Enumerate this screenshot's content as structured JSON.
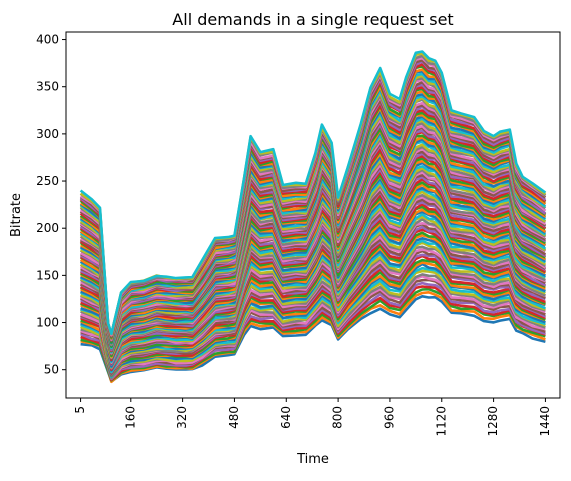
{
  "chart_data": {
    "type": "line",
    "title": "All demands in a single request set",
    "xlabel": "Time",
    "ylabel": "Bitrate",
    "xlim": [
      -40,
      1485
    ],
    "ylim": [
      20,
      408
    ],
    "x_ticks": [
      5,
      160,
      320,
      480,
      640,
      800,
      960,
      1120,
      1280,
      1440
    ],
    "y_ticks": [
      50,
      100,
      150,
      200,
      250,
      300,
      350,
      400
    ],
    "grid": false,
    "legend": "none",
    "series_count": 100,
    "x": [
      5,
      40,
      65,
      90,
      100,
      130,
      160,
      200,
      240,
      270,
      300,
      330,
      350,
      380,
      420,
      460,
      480,
      510,
      530,
      560,
      600,
      630,
      670,
      700,
      730,
      750,
      780,
      800,
      830,
      870,
      900,
      930,
      960,
      990,
      1010,
      1040,
      1060,
      1080,
      1100,
      1120,
      1150,
      1180,
      1220,
      1250,
      1280,
      1300,
      1330,
      1350,
      1370,
      1400,
      1440
    ],
    "envelope": {
      "max": [
        239,
        230,
        222,
        100,
        88,
        132,
        143,
        145,
        150,
        149,
        148,
        148,
        148,
        165,
        189,
        191,
        193,
        255,
        298,
        280,
        283,
        246,
        248,
        248,
        280,
        309,
        290,
        232,
        265,
        310,
        350,
        369,
        342,
        336,
        360,
        386,
        388,
        380,
        378,
        365,
        325,
        322,
        318,
        303,
        298,
        302,
        305,
        268,
        255,
        248,
        238
      ],
      "min": [
        78,
        75,
        72,
        48,
        37,
        45,
        48,
        49,
        52,
        51,
        50,
        50,
        50,
        55,
        64,
        65,
        66,
        88,
        96,
        93,
        94,
        85,
        87,
        87,
        96,
        102,
        97,
        82,
        92,
        103,
        110,
        115,
        108,
        106,
        114,
        125,
        128,
        127,
        126,
        122,
        110,
        109,
        108,
        102,
        100,
        102,
        104,
        92,
        88,
        84,
        80
      ]
    },
    "palette": [
      "#1f77b4",
      "#ff7f0e",
      "#2ca02c",
      "#d62728",
      "#9467bd",
      "#8c564b",
      "#e377c2",
      "#7f7f7f",
      "#bcbd22",
      "#17becf"
    ]
  }
}
